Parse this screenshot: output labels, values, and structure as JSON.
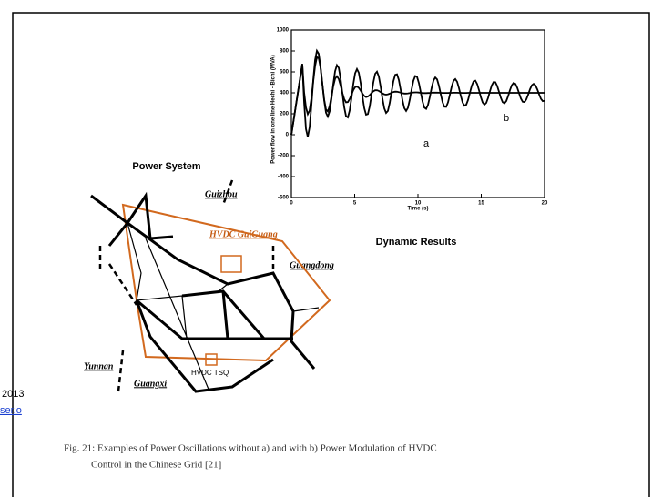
{
  "margin_note": {
    "year": "2013",
    "link": "ser.o"
  },
  "figure": {
    "plot": {
      "y_label": "Power flow in one line Hechi - Bichi (MVA)",
      "x_label": "Time (s)",
      "yticks": [
        "1000",
        "800",
        "600",
        "400",
        "200",
        "0",
        "-200",
        "-400",
        "-600"
      ],
      "xticks": [
        "0",
        "5",
        "10",
        "15",
        "20"
      ],
      "curve_labels": [
        "a",
        "b"
      ],
      "title": "Dynamic Results"
    },
    "network": {
      "title": "Power System",
      "regions": [
        "Guizhou",
        "Guangdong",
        "Yunnan",
        "Guangxi"
      ],
      "links": [
        "HVDC GuiGuang",
        "HVDC TSQ"
      ]
    },
    "caption": [
      "Fig. 21: Examples of Power Oscillations without a) and with b) Power Modulation of HVDC",
      "Control in the Chinese Grid [21]"
    ]
  }
}
